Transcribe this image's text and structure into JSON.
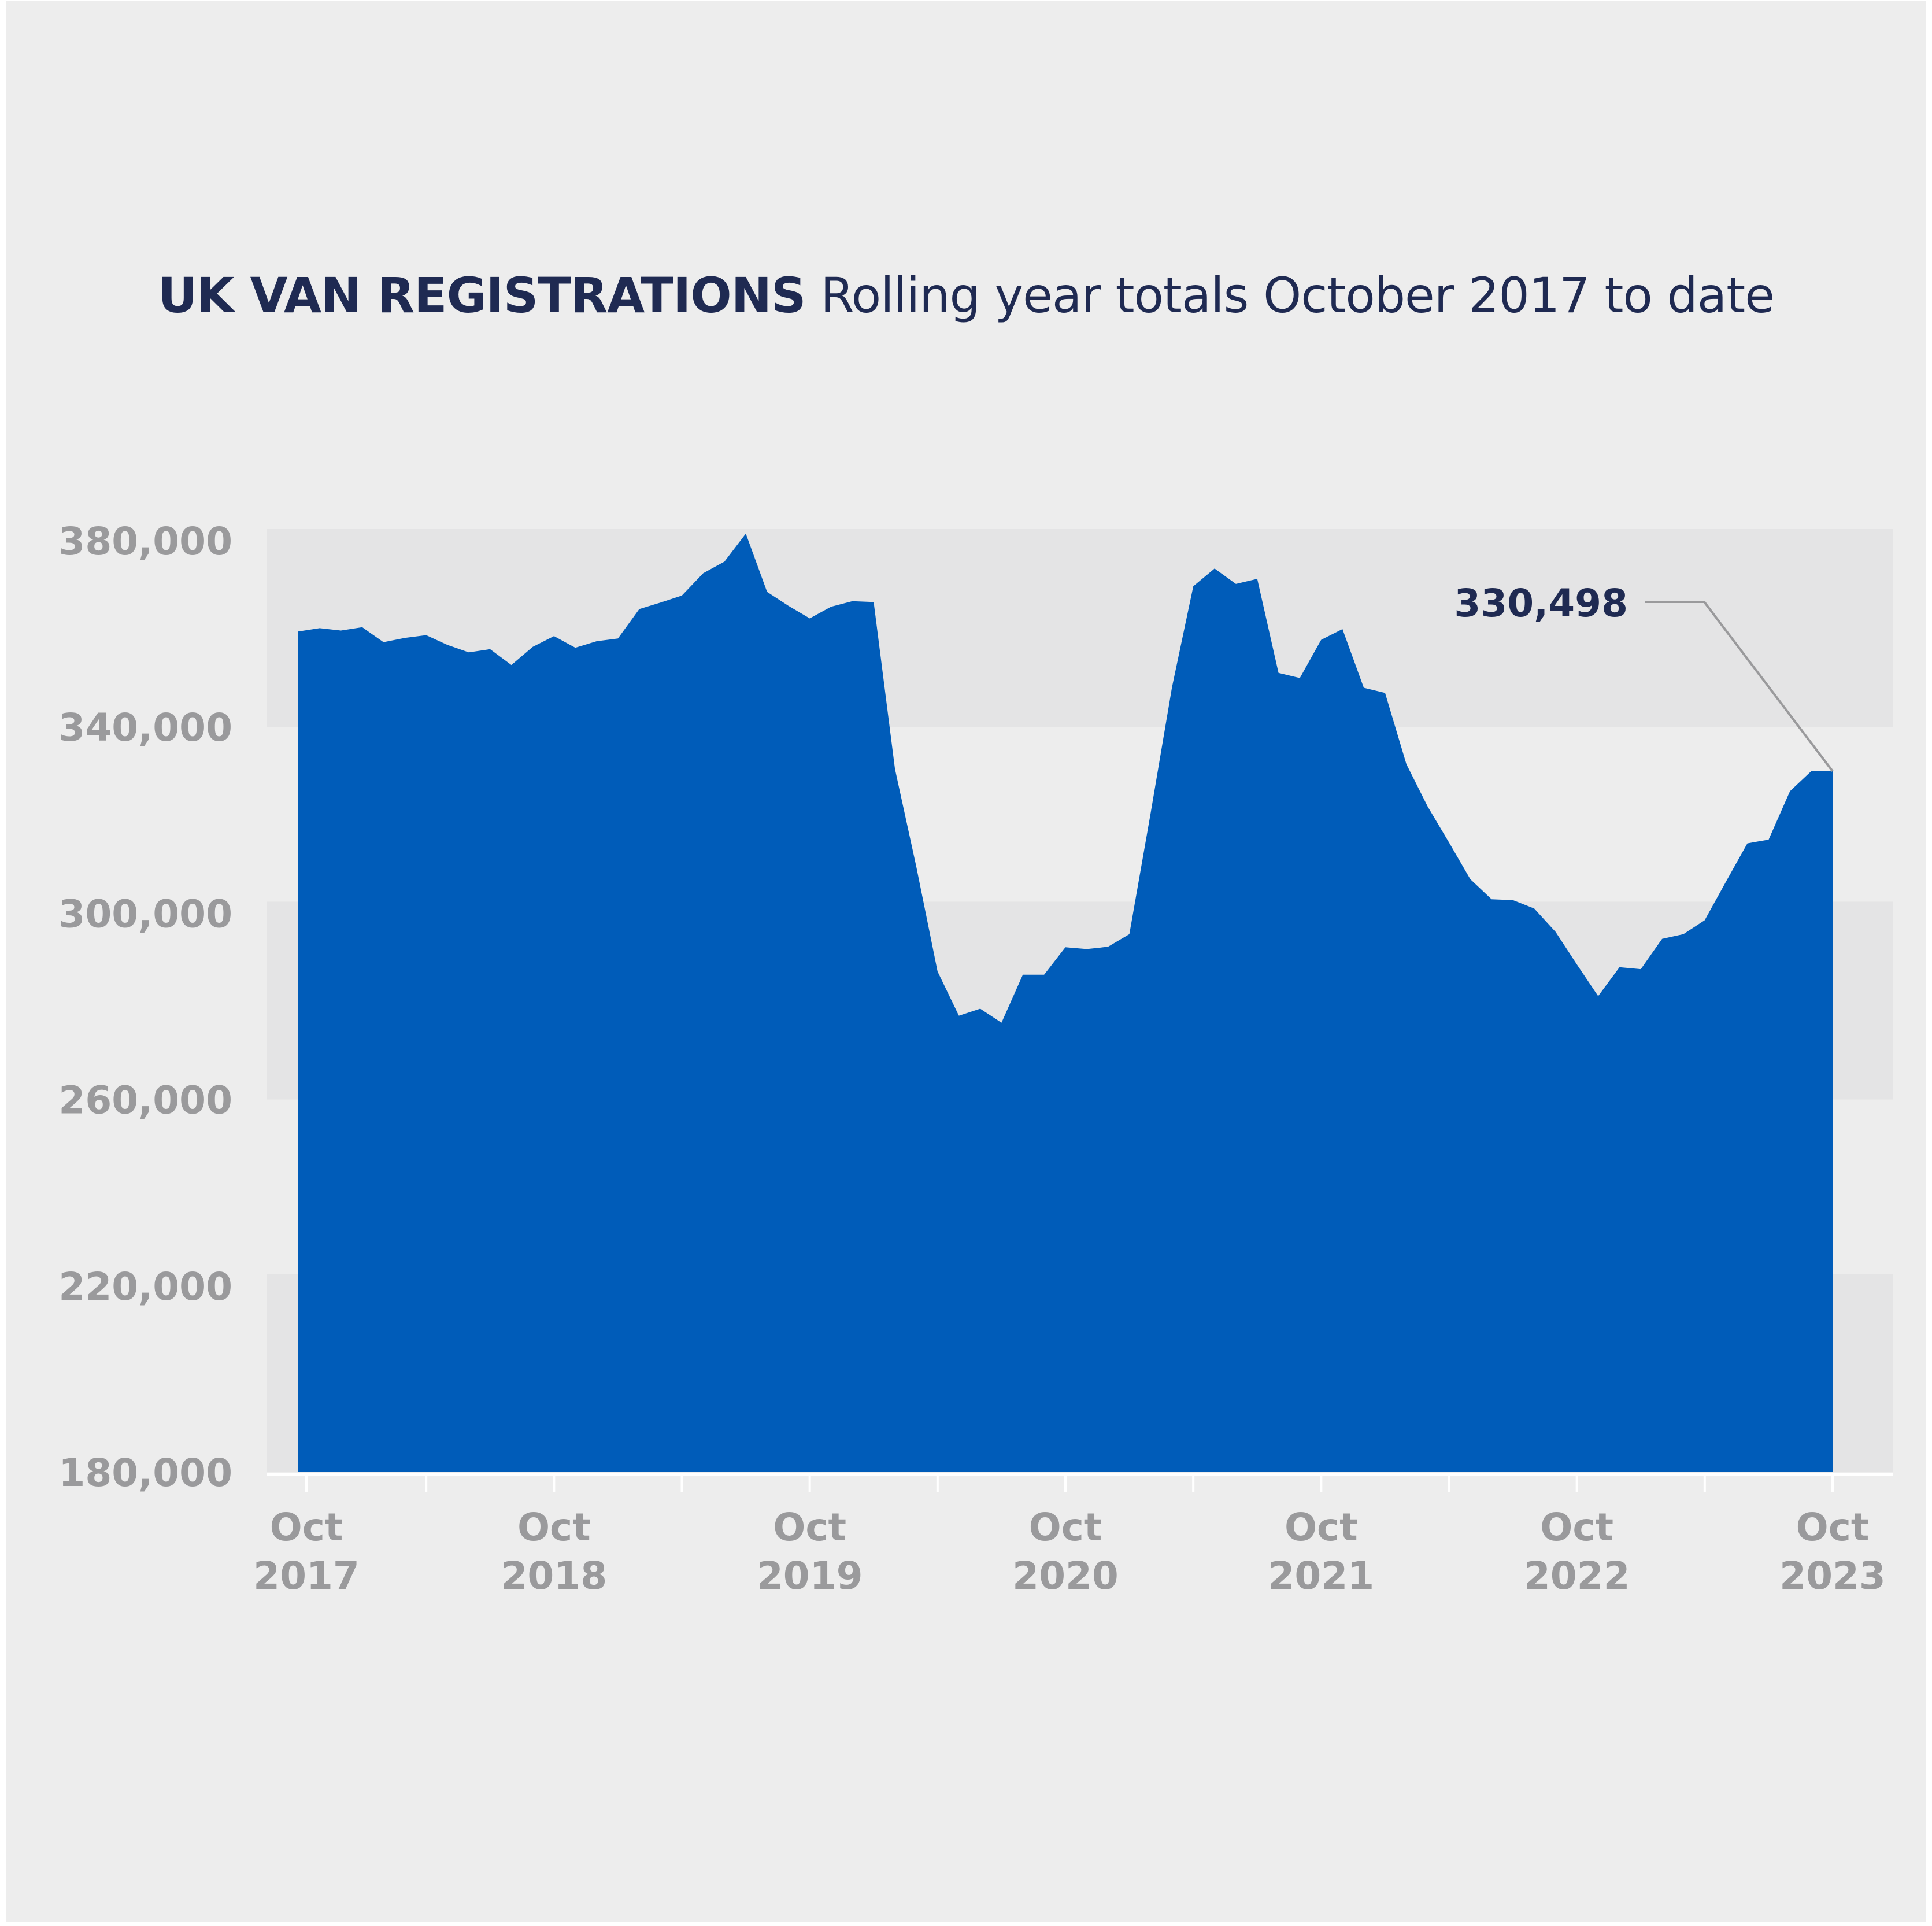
{
  "chart_data": {
    "type": "area",
    "title": "UK VAN REGISTRATIONS",
    "subtitle": "Rolling year totals October 2017 to date",
    "xlabel": "",
    "ylabel": "",
    "ylim": [
      180000,
      380000
    ],
    "yticks": [
      "380,000",
      "340,000",
      "300,000",
      "260,000",
      "220,000",
      "180,000"
    ],
    "ytick_values": [
      380000,
      340000,
      300000,
      260000,
      220000,
      180000
    ],
    "xticks": [
      {
        "month": "Oct",
        "year": "2017"
      },
      {
        "month": "Oct",
        "year": "2018"
      },
      {
        "month": "Oct",
        "year": "2019"
      },
      {
        "month": "Oct",
        "year": "2020"
      },
      {
        "month": "Oct",
        "year": "2021"
      },
      {
        "month": "Oct",
        "year": "2022"
      },
      {
        "month": "Oct",
        "year": "2023"
      }
    ],
    "grid": "alternating horizontal bands",
    "fill_color": "#005cb9",
    "annotation": {
      "label": "330,498",
      "value": 330498
    },
    "x": [
      "2017-10",
      "2017-11",
      "2017-12",
      "2018-01",
      "2018-02",
      "2018-03",
      "2018-04",
      "2018-05",
      "2018-06",
      "2018-07",
      "2018-08",
      "2018-09",
      "2018-10",
      "2018-11",
      "2018-12",
      "2019-01",
      "2019-02",
      "2019-03",
      "2019-04",
      "2019-05",
      "2019-06",
      "2019-07",
      "2019-08",
      "2019-09",
      "2019-10",
      "2019-11",
      "2019-12",
      "2020-01",
      "2020-02",
      "2020-03",
      "2020-04",
      "2020-05",
      "2020-06",
      "2020-07",
      "2020-08",
      "2020-09",
      "2020-10",
      "2020-11",
      "2020-12",
      "2021-01",
      "2021-02",
      "2021-03",
      "2021-04",
      "2021-05",
      "2021-06",
      "2021-07",
      "2021-08",
      "2021-09",
      "2021-10",
      "2021-11",
      "2021-12",
      "2022-01",
      "2022-02",
      "2022-03",
      "2022-04",
      "2022-05",
      "2022-06",
      "2022-07",
      "2022-08",
      "2022-09",
      "2022-10",
      "2022-11",
      "2022-12",
      "2023-01",
      "2023-02",
      "2023-03",
      "2023-04",
      "2023-05",
      "2023-06",
      "2023-07",
      "2023-08",
      "2023-09",
      "2023-10"
    ],
    "values": [
      360500,
      361200,
      360700,
      361400,
      358200,
      359100,
      359700,
      357600,
      356000,
      356700,
      353300,
      357200,
      359500,
      357000,
      358400,
      359000,
      365300,
      366700,
      368200,
      373000,
      375500,
      381500,
      369000,
      366000,
      363300,
      365800,
      367000,
      366800,
      331000,
      310000,
      287500,
      278000,
      279500,
      276500,
      286800,
      286800,
      292700,
      292300,
      292800,
      295500,
      321500,
      348500,
      370200,
      374000,
      370700,
      371800,
      351600,
      350500,
      358700,
      361000,
      348400,
      347300,
      332000,
      322900,
      315200,
      307300,
      303000,
      302800,
      301000,
      296000,
      289000,
      282200,
      288400,
      288000,
      294500,
      295500,
      298500,
      306800,
      315000,
      315800,
      326200,
      330498,
      330498
    ]
  }
}
